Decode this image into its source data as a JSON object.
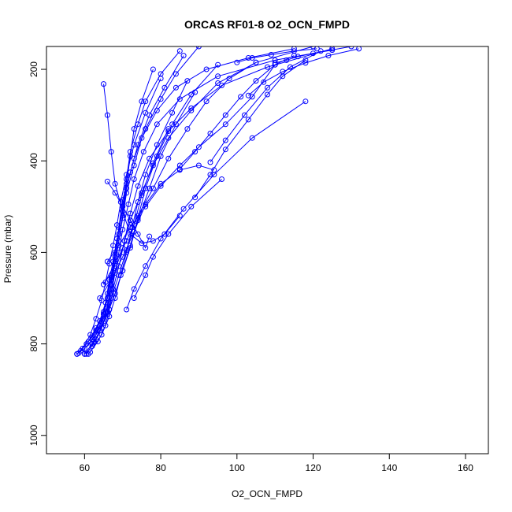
{
  "chart_data": {
    "type": "line",
    "title": "ORCAS RF01-8 O2_OCN_FMPD",
    "xlabel": "O2_OCN_FMPD",
    "ylabel": "Pressure (mbar)",
    "xlim": [
      50,
      166
    ],
    "ylim": [
      1040,
      150
    ],
    "y_reversed": true,
    "x_ticks": [
      60,
      80,
      100,
      120,
      140,
      160
    ],
    "y_ticks": [
      200,
      400,
      600,
      800,
      1000
    ],
    "grid": false,
    "legend": "none",
    "marker": "open-circle",
    "line_color": "#0000ff",
    "series": [
      {
        "x": [
          58,
          60,
          62,
          64,
          66,
          67,
          68,
          70,
          72,
          75,
          78,
          82,
          88,
          95,
          105,
          120
        ],
        "y": [
          822,
          810,
          790,
          760,
          720,
          680,
          640,
          590,
          530,
          470,
          410,
          350,
          290,
          230,
          185,
          150
        ]
      },
      {
        "x": [
          58.5,
          61,
          63,
          65,
          66,
          67,
          68,
          69,
          70,
          71,
          72,
          74,
          76,
          80,
          85
        ],
        "y": [
          820,
          795,
          765,
          730,
          690,
          650,
          610,
          560,
          500,
          440,
          380,
          320,
          270,
          210,
          160
        ]
      },
      {
        "x": [
          59,
          62,
          64,
          65.5,
          66.5,
          67.5,
          68.5,
          70,
          71,
          72,
          73,
          75,
          78
        ],
        "y": [
          815,
          785,
          750,
          710,
          660,
          620,
          570,
          510,
          450,
          390,
          330,
          270,
          200
        ]
      },
      {
        "x": [
          60,
          62,
          63.5,
          65,
          66,
          67,
          68,
          69,
          70,
          72,
          74,
          77,
          81,
          86
        ],
        "y": [
          822,
          800,
          770,
          735,
          700,
          655,
          600,
          545,
          485,
          425,
          365,
          300,
          240,
          170
        ]
      },
      {
        "x": [
          60.5,
          63,
          65,
          66,
          67,
          68,
          69,
          70,
          71,
          73,
          76,
          80,
          84,
          90
        ],
        "y": [
          822,
          790,
          755,
          715,
          670,
          625,
          575,
          520,
          460,
          395,
          330,
          265,
          210,
          150
        ]
      },
      {
        "x": [
          61,
          63.5,
          65.5,
          66.5,
          67.5,
          69,
          70.5,
          72,
          74,
          77,
          82,
          88,
          96,
          108,
          125
        ],
        "y": [
          822,
          795,
          760,
          725,
          680,
          630,
          575,
          515,
          455,
          395,
          335,
          285,
          235,
          195,
          155
        ]
      },
      {
        "x": [
          59.5,
          61.5,
          63,
          64.5,
          65.5,
          66.5,
          67.5,
          68.5,
          69.5,
          71,
          73,
          76,
          80
        ],
        "y": [
          810,
          780,
          745,
          705,
          665,
          625,
          585,
          540,
          490,
          430,
          365,
          295,
          220
        ]
      },
      {
        "x": [
          62,
          64,
          66,
          68,
          70,
          72,
          74,
          77,
          80,
          84,
          89
        ],
        "y": [
          805,
          770,
          730,
          690,
          640,
          590,
          530,
          460,
          390,
          320,
          250
        ]
      },
      {
        "x": [
          61.5,
          64.5,
          66.5,
          68,
          69.5,
          71,
          72.5,
          74,
          76,
          79,
          83,
          87
        ],
        "y": [
          818,
          780,
          740,
          700,
          650,
          600,
          545,
          490,
          430,
          365,
          295,
          225
        ]
      },
      {
        "x": [
          58,
          60.5,
          63,
          65,
          66,
          67,
          68,
          69,
          70,
          71,
          73,
          75,
          79,
          84,
          92,
          103,
          115
        ],
        "y": [
          822,
          800,
          770,
          735,
          700,
          660,
          620,
          575,
          525,
          470,
          410,
          350,
          290,
          240,
          200,
          175,
          155
        ]
      },
      {
        "x": [
          62,
          65,
          67,
          69,
          71,
          73,
          75,
          78,
          82
        ],
        "y": [
          790,
          745,
          700,
          650,
          595,
          540,
          475,
          405,
          330
        ]
      },
      {
        "x": [
          60,
          62.5,
          64.5,
          66,
          67,
          68,
          69,
          70,
          71.5,
          73,
          75.5,
          79,
          85,
          95,
          110,
          130
        ],
        "y": [
          822,
          795,
          765,
          730,
          690,
          645,
          600,
          550,
          495,
          440,
          380,
          320,
          265,
          215,
          180,
          150
        ]
      },
      {
        "x": [
          63,
          66,
          68,
          70,
          72,
          74,
          76,
          79,
          83,
          88,
          95
        ],
        "y": [
          780,
          735,
          690,
          640,
          585,
          525,
          460,
          390,
          320,
          255,
          190
        ]
      },
      {
        "x": [
          64,
          67,
          70,
          73,
          76,
          80,
          85,
          90,
          94
        ],
        "y": [
          700,
          660,
          610,
          555,
          495,
          450,
          420,
          410,
          420
        ]
      },
      {
        "x": [
          65,
          68,
          71,
          74,
          78,
          82,
          87,
          92,
          98,
          105
        ],
        "y": [
          670,
          625,
          575,
          520,
          460,
          395,
          330,
          270,
          220,
          185
        ]
      },
      {
        "x": [
          66,
          69,
          72,
          76,
          80,
          85,
          90,
          97,
          104,
          110
        ],
        "y": [
          620,
          585,
          545,
          500,
          455,
          410,
          370,
          320,
          260,
          190
        ]
      },
      {
        "x": [
          65,
          66,
          67,
          68,
          70,
          72,
          75,
          78,
          81,
          85
        ],
        "y": [
          232,
          300,
          380,
          450,
          510,
          560,
          580,
          575,
          560,
          520
        ]
      },
      {
        "x": [
          66,
          68,
          70,
          72,
          74,
          76,
          77
        ],
        "y": [
          445,
          470,
          500,
          530,
          560,
          590,
          565
        ]
      },
      {
        "x": [
          85,
          89,
          93,
          97,
          101,
          105,
          110,
          115
        ],
        "y": [
          418,
          380,
          340,
          300,
          260,
          225,
          190,
          170
        ]
      },
      {
        "x": [
          89,
          93,
          97,
          103,
          108,
          112,
          118
        ],
        "y": [
          480,
          430,
          375,
          310,
          255,
          215,
          180
        ]
      },
      {
        "x": [
          93,
          97,
          102,
          108,
          114,
          122
        ],
        "y": [
          403,
          355,
          300,
          240,
          195,
          160
        ]
      },
      {
        "x": [
          100,
          104,
          109,
          115,
          121
        ],
        "y": [
          185,
          175,
          168,
          160,
          155
        ]
      },
      {
        "x": [
          103,
          107,
          112,
          118,
          124,
          132
        ],
        "y": [
          257,
          228,
          205,
          186,
          170,
          155
        ]
      },
      {
        "x": [
          110,
          113,
          116,
          120,
          125
        ],
        "y": [
          186,
          180,
          172,
          165,
          158
        ]
      },
      {
        "x": [
          73,
          76,
          78,
          82,
          88,
          96
        ],
        "y": [
          700,
          650,
          610,
          560,
          500,
          440
        ]
      },
      {
        "x": [
          71,
          73,
          76,
          80,
          86,
          94,
          104,
          118
        ],
        "y": [
          725,
          680,
          630,
          570,
          505,
          430,
          350,
          270
        ]
      }
    ]
  }
}
